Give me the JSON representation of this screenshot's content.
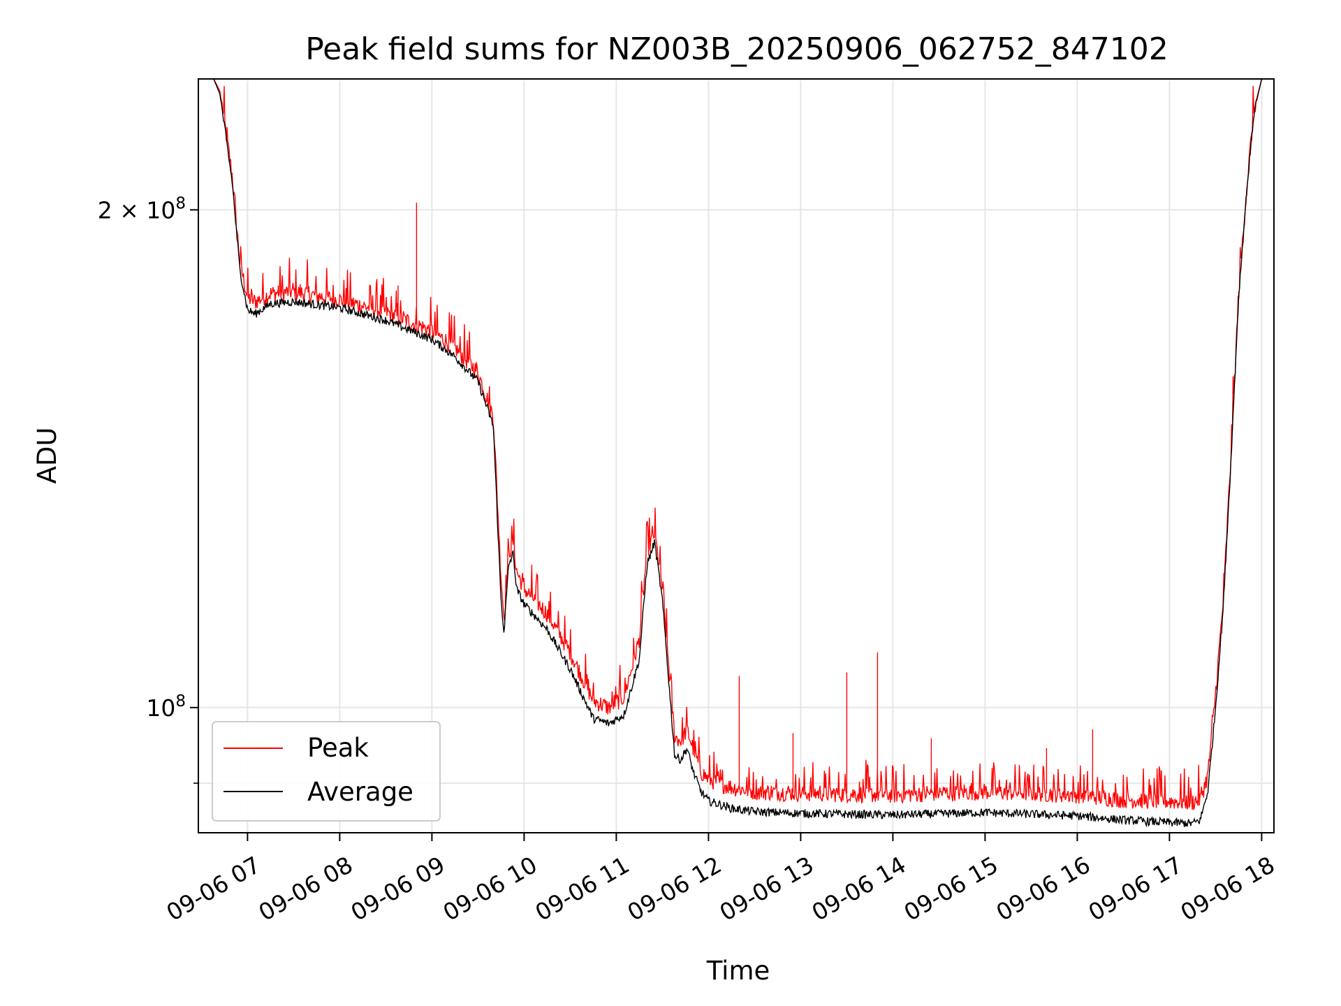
{
  "chart_data": {
    "type": "line",
    "title": "Peak field sums for NZ003B_20250906_062752_847102",
    "xlabel": "Time",
    "ylabel": "ADU",
    "y_scale": "log",
    "ylim": [
      84000000,
      240000000
    ],
    "xlim": [
      "2025-09-06 06:28",
      "2025-09-06 18:08"
    ],
    "x_ticks": [
      {
        "t": "2025-09-06 07:00",
        "label": "09-06 07"
      },
      {
        "t": "2025-09-06 08:00",
        "label": "09-06 08"
      },
      {
        "t": "2025-09-06 09:00",
        "label": "09-06 09"
      },
      {
        "t": "2025-09-06 10:00",
        "label": "09-06 10"
      },
      {
        "t": "2025-09-06 11:00",
        "label": "09-06 11"
      },
      {
        "t": "2025-09-06 12:00",
        "label": "09-06 12"
      },
      {
        "t": "2025-09-06 13:00",
        "label": "09-06 13"
      },
      {
        "t": "2025-09-06 14:00",
        "label": "09-06 14"
      },
      {
        "t": "2025-09-06 15:00",
        "label": "09-06 15"
      },
      {
        "t": "2025-09-06 16:00",
        "label": "09-06 16"
      },
      {
        "t": "2025-09-06 17:00",
        "label": "09-06 17"
      },
      {
        "t": "2025-09-06 18:00",
        "label": "09-06 18"
      }
    ],
    "y_ticks_major": [
      {
        "v": 100000000,
        "base": "10",
        "exp": "8",
        "coef": ""
      },
      {
        "v": 200000000,
        "base": "10",
        "exp": "8",
        "coef": "2 × "
      }
    ],
    "y_ticks_minor": [
      90000000
    ],
    "grid": true,
    "legend_position": "lower-left",
    "series": [
      {
        "name": "Peak",
        "color": "#ff0000",
        "x": [
          "2025-09-06 06:28",
          "2025-09-06 06:38",
          "2025-09-06 06:42",
          "2025-09-06 06:50",
          "2025-09-06 06:55",
          "2025-09-06 07:00",
          "2025-09-06 07:05",
          "2025-09-06 07:15",
          "2025-09-06 07:30",
          "2025-09-06 08:00",
          "2025-09-06 08:30",
          "2025-09-06 08:50",
          "2025-09-06 09:00",
          "2025-09-06 09:15",
          "2025-09-06 09:30",
          "2025-09-06 09:40",
          "2025-09-06 09:45",
          "2025-09-06 09:47",
          "2025-09-06 09:48",
          "2025-09-06 09:50",
          "2025-09-06 09:53",
          "2025-09-06 09:55",
          "2025-09-06 10:00",
          "2025-09-06 10:15",
          "2025-09-06 10:30",
          "2025-09-06 10:45",
          "2025-09-06 10:55",
          "2025-09-06 11:05",
          "2025-09-06 11:15",
          "2025-09-06 11:20",
          "2025-09-06 11:25",
          "2025-09-06 11:30",
          "2025-09-06 11:32",
          "2025-09-06 11:38",
          "2025-09-06 11:42",
          "2025-09-06 11:46",
          "2025-09-06 11:50",
          "2025-09-06 11:55",
          "2025-09-06 12:00",
          "2025-09-06 12:15",
          "2025-09-06 12:30",
          "2025-09-06 13:00",
          "2025-09-06 14:00",
          "2025-09-06 15:00",
          "2025-09-06 16:00",
          "2025-09-06 16:30",
          "2025-09-06 17:00",
          "2025-09-06 17:15",
          "2025-09-06 17:20",
          "2025-09-06 17:25",
          "2025-09-06 17:30",
          "2025-09-06 17:35",
          "2025-09-06 17:40",
          "2025-09-06 17:45",
          "2025-09-06 17:50",
          "2025-09-06 17:55",
          "2025-09-06 18:00",
          "2025-09-06 18:08"
        ],
        "y": [
          240000000,
          240000000,
          236000000,
          210000000,
          186000000,
          177000000,
          176000000,
          178000000,
          178500000,
          176500000,
          173500000,
          170500000,
          169000000,
          165000000,
          159500000,
          150000000,
          120000000,
          113000000,
          117000000,
          124000000,
          126000000,
          121000000,
          118000000,
          114000000,
          108000000,
          101000000,
          100000000,
          101500000,
          110000000,
          124500000,
          127500000,
          118000000,
          112000000,
          96000000,
          95500000,
          97000000,
          94500000,
          91500000,
          90500000,
          89500000,
          89000000,
          88800000,
          88600000,
          89000000,
          88600000,
          88000000,
          87800000,
          87700000,
          88000000,
          91000000,
          102000000,
          116000000,
          142000000,
          178000000,
          205000000,
          230000000,
          240000000,
          240000000
        ],
        "spikes": [
          {
            "x": "2025-09-06 08:50",
            "y": 202000000
          },
          {
            "x": "2025-09-06 08:38",
            "y": 180000000
          },
          {
            "x": "2025-09-06 07:20",
            "y": 180000000
          },
          {
            "x": "2025-09-06 10:05",
            "y": 122000000
          },
          {
            "x": "2025-09-06 12:20",
            "y": 104500000
          },
          {
            "x": "2025-09-06 13:30",
            "y": 105000000
          },
          {
            "x": "2025-09-06 13:50",
            "y": 108000000
          },
          {
            "x": "2025-09-06 16:10",
            "y": 97000000
          },
          {
            "x": "2025-09-06 12:55",
            "y": 96500000
          },
          {
            "x": "2025-09-06 14:25",
            "y": 95800000
          },
          {
            "x": "2025-09-06 15:40",
            "y": 94500000
          }
        ]
      },
      {
        "name": "Average",
        "color": "#000000",
        "x": [
          "2025-09-06 06:28",
          "2025-09-06 06:38",
          "2025-09-06 06:42",
          "2025-09-06 06:50",
          "2025-09-06 06:55",
          "2025-09-06 07:00",
          "2025-09-06 07:05",
          "2025-09-06 07:15",
          "2025-09-06 07:30",
          "2025-09-06 08:00",
          "2025-09-06 08:30",
          "2025-09-06 08:50",
          "2025-09-06 09:00",
          "2025-09-06 09:15",
          "2025-09-06 09:30",
          "2025-09-06 09:40",
          "2025-09-06 09:45",
          "2025-09-06 09:47",
          "2025-09-06 09:48",
          "2025-09-06 09:50",
          "2025-09-06 09:53",
          "2025-09-06 09:55",
          "2025-09-06 10:00",
          "2025-09-06 10:15",
          "2025-09-06 10:30",
          "2025-09-06 10:45",
          "2025-09-06 10:55",
          "2025-09-06 11:05",
          "2025-09-06 11:15",
          "2025-09-06 11:20",
          "2025-09-06 11:25",
          "2025-09-06 11:30",
          "2025-09-06 11:32",
          "2025-09-06 11:38",
          "2025-09-06 11:42",
          "2025-09-06 11:46",
          "2025-09-06 11:50",
          "2025-09-06 11:55",
          "2025-09-06 12:00",
          "2025-09-06 12:15",
          "2025-09-06 12:30",
          "2025-09-06 13:00",
          "2025-09-06 14:00",
          "2025-09-06 15:00",
          "2025-09-06 16:00",
          "2025-09-06 16:30",
          "2025-09-06 17:00",
          "2025-09-06 17:15",
          "2025-09-06 17:20",
          "2025-09-06 17:25",
          "2025-09-06 17:30",
          "2025-09-06 17:35",
          "2025-09-06 17:40",
          "2025-09-06 17:45",
          "2025-09-06 17:50",
          "2025-09-06 17:55",
          "2025-09-06 18:00",
          "2025-09-06 18:08"
        ],
        "y": [
          240000000,
          240000000,
          235000000,
          208000000,
          184000000,
          174000000,
          173000000,
          175500000,
          176000000,
          174500000,
          171500000,
          168500000,
          167000000,
          163000000,
          157500000,
          148000000,
          116000000,
          111000000,
          115000000,
          122000000,
          124000000,
          118000000,
          115500000,
          111500000,
          105500000,
          98500000,
          97800000,
          99000000,
          107000000,
          122000000,
          126000000,
          116000000,
          110000000,
          93500000,
          93000000,
          94500000,
          91500000,
          89000000,
          87800000,
          86900000,
          86500000,
          86300000,
          86100000,
          86400000,
          86000000,
          85500000,
          85200000,
          85100000,
          85500000,
          89000000,
          100000000,
          115000000,
          141000000,
          177000000,
          204000000,
          229000000,
          240000000,
          240000000
        ]
      }
    ]
  }
}
